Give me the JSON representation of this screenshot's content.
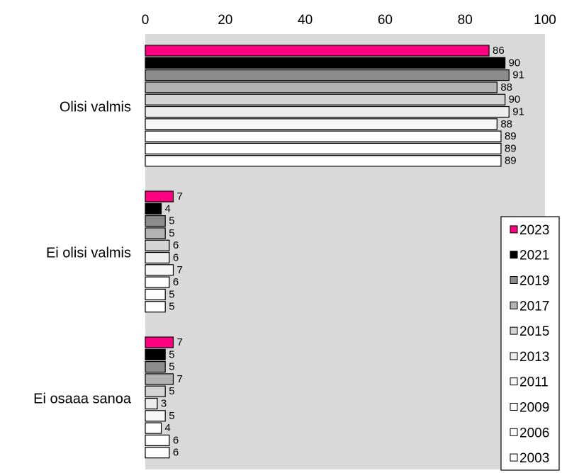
{
  "chart_data": {
    "type": "bar",
    "orientation": "horizontal",
    "xlim": [
      0,
      100
    ],
    "x_ticks": [
      "0",
      "20",
      "40",
      "60",
      "80",
      "100"
    ],
    "categories": [
      "Olisi valmis",
      "Ei olisi valmis",
      "Ei osaaa sanoa"
    ],
    "series": [
      {
        "name": "2023",
        "color": "#ff0080",
        "values": [
          86,
          7,
          7
        ]
      },
      {
        "name": "2021",
        "color": "#000000",
        "values": [
          90,
          4,
          5
        ]
      },
      {
        "name": "2019",
        "color": "#8c8c8c",
        "values": [
          91,
          5,
          5
        ]
      },
      {
        "name": "2017",
        "color": "#b2b2b2",
        "values": [
          88,
          5,
          7
        ]
      },
      {
        "name": "2015",
        "color": "#d4d4d4",
        "values": [
          90,
          6,
          5
        ]
      },
      {
        "name": "2013",
        "color": "#ededed",
        "values": [
          91,
          6,
          3
        ]
      },
      {
        "name": "2011",
        "color": "#f7f7f7",
        "values": [
          88,
          7,
          5
        ]
      },
      {
        "name": "2009",
        "color": "#ffffff",
        "values": [
          89,
          6,
          4
        ]
      },
      {
        "name": "2006",
        "color": "#ffffff",
        "values": [
          89,
          5,
          6
        ]
      },
      {
        "name": "2003",
        "color": "#ffffff",
        "values": [
          89,
          5,
          6
        ]
      }
    ],
    "legend_position": "right",
    "plot_background": "#d9d9d9",
    "grid": false
  }
}
